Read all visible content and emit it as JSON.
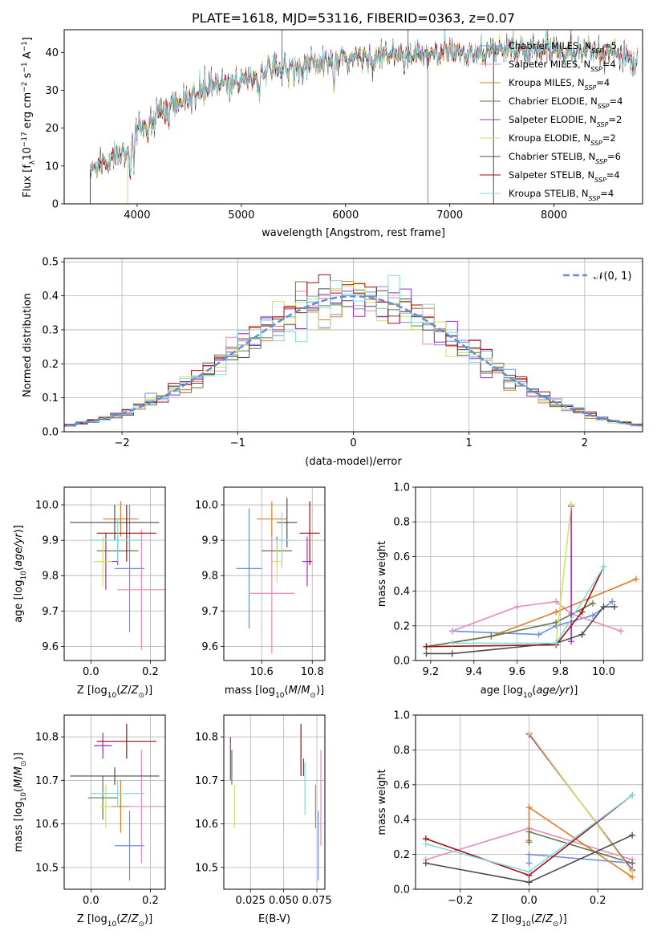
{
  "colors": [
    "#6b8fdf",
    "#e589bf",
    "#e07a26",
    "#5e7a4a",
    "#9b2fb8",
    "#d6e05a",
    "#4a4a4a",
    "#a50e0e",
    "#80dce0"
  ],
  "legend": [
    {
      "label": "Chabrier MILES, N",
      "sub": "SSP",
      "tail": "=5"
    },
    {
      "label": "Salpeter MILES, N",
      "sub": "SSP",
      "tail": "=4"
    },
    {
      "label": "Kroupa MILES, N",
      "sub": "SSP",
      "tail": "=4"
    },
    {
      "label": "Chabrier ELODIE, N",
      "sub": "SSP",
      "tail": "=4"
    },
    {
      "label": "Salpeter ELODIE, N",
      "sub": "SSP",
      "tail": "=2"
    },
    {
      "label": "Kroupa ELODIE, N",
      "sub": "SSP",
      "tail": "=2"
    },
    {
      "label": "Chabrier STELIB, N",
      "sub": "SSP",
      "tail": "=6"
    },
    {
      "label": "Salpeter STELIB, N",
      "sub": "SSP",
      "tail": "=4"
    },
    {
      "label": "Kroupa STELIB, N",
      "sub": "SSP",
      "tail": "=4"
    }
  ],
  "chart_data": [
    {
      "id": "spectrum",
      "type": "line",
      "title": "PLATE=1618, MJD=53116, FIBERID=0363, z=0.07",
      "xlabel": "wavelength [Angstrom, rest frame]",
      "ylabel_parts": [
        "Flux [f",
        "λ",
        "10",
        "−17",
        " erg cm",
        "−2",
        " s",
        "−1",
        " A",
        "−1",
        "]"
      ],
      "xlim": [
        3300,
        8850
      ],
      "ylim": [
        0,
        46
      ],
      "xticks": [
        4000,
        5000,
        6000,
        7000,
        8000
      ],
      "yticks": [
        0,
        10,
        20,
        30,
        40
      ],
      "continuum": {
        "x": [
          3550,
          3700,
          3900,
          4000,
          4100,
          4300,
          4500,
          4700,
          5000,
          5300,
          5600,
          6000,
          6400,
          6800,
          7200,
          7500,
          8000,
          8500,
          8800
        ],
        "y": [
          9,
          11,
          15,
          19,
          21,
          25,
          28,
          31,
          33,
          35,
          36.5,
          38,
          39,
          39.5,
          40,
          40.5,
          41,
          40,
          38
        ]
      }
    },
    {
      "id": "residuals",
      "type": "line",
      "xlabel": "(data-model)/error",
      "ylabel": "Normed distribution",
      "xlim": [
        -2.5,
        2.5
      ],
      "ylim": [
        0,
        0.51
      ],
      "xticks": [
        -2,
        -1,
        0,
        1,
        2
      ],
      "xtick_labels": [
        "−2",
        "−1",
        "0",
        "1",
        "2"
      ],
      "yticks": [
        0.0,
        0.1,
        0.2,
        0.3,
        0.4,
        0.5
      ],
      "ytick_labels": [
        "0.0",
        "0.1",
        "0.2",
        "0.3",
        "0.4",
        "0.5"
      ],
      "reference_label": "𝒩(0, 1)",
      "bin_width": 0.1
    },
    {
      "id": "age_vs_Z",
      "type": "scatter",
      "xlabel": "Z [log10(Z/Z⊙)]",
      "ylabel": "age [log10(age/yr)]",
      "xlim": [
        -0.09,
        0.25
      ],
      "ylim": [
        9.56,
        10.05
      ],
      "xticks": [
        0.0,
        0.2
      ],
      "xtick_labels": [
        "0.0",
        "0.2"
      ],
      "yticks": [
        9.6,
        9.7,
        9.8,
        9.9,
        10.0
      ],
      "ytick_labels": [
        "9.6",
        "9.7",
        "9.8",
        "9.9",
        "10.0"
      ],
      "points": [
        {
          "x": 0.13,
          "y": 9.82,
          "xe": 0.05,
          "ye": 0.18
        },
        {
          "x": 0.17,
          "y": 9.76,
          "xe": 0.08,
          "ye": 0.17
        },
        {
          "x": 0.1,
          "y": 9.96,
          "xe": 0.06,
          "ye": 0.05
        },
        {
          "x": 0.09,
          "y": 9.87,
          "xe": 0.07,
          "ye": 0.04
        },
        {
          "x": 0.05,
          "y": 9.84,
          "xe": 0.04,
          "ye": 0.08
        },
        {
          "x": 0.04,
          "y": 9.84,
          "xe": 0.03,
          "ye": 0.07
        },
        {
          "x": 0.08,
          "y": 9.95,
          "xe": 0.15,
          "ye": 0.05
        },
        {
          "x": 0.12,
          "y": 9.92,
          "xe": 0.1,
          "ye": 0.08
        },
        {
          "x": 0.09,
          "y": 9.9,
          "xe": 0.09,
          "ye": 0.06
        }
      ]
    },
    {
      "id": "age_vs_mass",
      "type": "scatter",
      "xlabel": "mass [log10(M/M⊙)]",
      "xlim": [
        10.45,
        10.85
      ],
      "ylim": [
        9.56,
        10.05
      ],
      "xticks": [
        10.6,
        10.8
      ],
      "xtick_labels": [
        "10.6",
        "10.8"
      ],
      "yticks": [
        9.6,
        9.7,
        9.8,
        9.9,
        10.0
      ],
      "ytick_labels": [
        "9.6",
        "9.7",
        "9.8",
        "9.9",
        "10.0"
      ],
      "points": [
        {
          "x": 10.55,
          "y": 9.82,
          "xe": 0.05,
          "ye": 0.17
        },
        {
          "x": 10.64,
          "y": 9.75,
          "xe": 0.09,
          "ye": 0.17
        },
        {
          "x": 10.64,
          "y": 9.96,
          "xe": 0.06,
          "ye": 0.05
        },
        {
          "x": 10.66,
          "y": 9.87,
          "xe": 0.06,
          "ye": 0.04
        },
        {
          "x": 10.78,
          "y": 9.84,
          "xe": 0.02,
          "ye": 0.07
        },
        {
          "x": 10.66,
          "y": 9.84,
          "xe": 0.02,
          "ye": 0.06
        },
        {
          "x": 10.7,
          "y": 9.95,
          "xe": 0.04,
          "ye": 0.07
        },
        {
          "x": 10.79,
          "y": 9.92,
          "xe": 0.04,
          "ye": 0.09
        },
        {
          "x": 10.68,
          "y": 9.9,
          "xe": 0.03,
          "ye": 0.08
        }
      ]
    },
    {
      "id": "weight_vs_age",
      "type": "line",
      "xlabel": "age [log10(age/yr)]",
      "ylabel": "mass weight",
      "xlim": [
        9.13,
        10.18
      ],
      "ylim": [
        0,
        1
      ],
      "xticks": [
        9.2,
        9.4,
        9.6,
        9.8,
        10.0
      ],
      "xtick_labels": [
        "9.2",
        "9.4",
        "9.6",
        "9.8",
        "10.0"
      ],
      "yticks": [
        0,
        0.2,
        0.4,
        0.6,
        0.8,
        1.0
      ],
      "ytick_labels": [
        "0.0",
        "0.2",
        "0.4",
        "0.6",
        "0.8",
        "1.0"
      ],
      "series": [
        {
          "x": [
            9.3,
            9.7,
            9.78,
            9.95,
            10.04
          ],
          "y": [
            0.17,
            0.15,
            0.2,
            0.26,
            0.34
          ]
        },
        {
          "x": [
            9.3,
            9.6,
            9.78,
            9.85,
            10.08
          ],
          "y": [
            0.17,
            0.31,
            0.34,
            0.27,
            0.17
          ]
        },
        {
          "x": [
            9.18,
            9.48,
            9.78,
            10.15
          ],
          "y": [
            0.08,
            0.14,
            0.28,
            0.47
          ]
        },
        {
          "x": [
            9.18,
            9.48,
            9.78,
            9.95
          ],
          "y": [
            0.08,
            0.14,
            0.22,
            0.33
          ]
        },
        {
          "x": [
            9.85,
            9.85
          ],
          "y": [
            0.11,
            0.89
          ]
        },
        {
          "x": [
            9.78,
            9.85
          ],
          "y": [
            0.1,
            0.9
          ]
        },
        {
          "x": [
            9.18,
            9.3,
            9.78,
            9.9,
            10.0,
            10.05
          ],
          "y": [
            0.04,
            0.04,
            0.1,
            0.15,
            0.31,
            0.31
          ]
        },
        {
          "x": [
            9.18,
            9.78,
            9.9,
            10.0
          ],
          "y": [
            0.08,
            0.09,
            0.28,
            0.54
          ]
        },
        {
          "x": [
            9.3,
            9.78,
            10.0
          ],
          "y": [
            0.1,
            0.1,
            0.54
          ]
        }
      ]
    },
    {
      "id": "mass_vs_Z",
      "type": "scatter",
      "xlabel": "Z [log10(Z/Z⊙)]",
      "ylabel": "mass [log10(M/M⊙)]",
      "xlim": [
        -0.09,
        0.25
      ],
      "ylim": [
        10.45,
        10.85
      ],
      "xticks": [
        0.0,
        0.2
      ],
      "xtick_labels": [
        "0.0",
        "0.2"
      ],
      "yticks": [
        10.5,
        10.6,
        10.7,
        10.8
      ],
      "ytick_labels": [
        "10.5",
        "10.6",
        "10.7",
        "10.8"
      ],
      "points": [
        {
          "x": 0.13,
          "y": 10.55,
          "xe": 0.05,
          "ye": 0.08
        },
        {
          "x": 0.17,
          "y": 10.64,
          "xe": 0.08,
          "ye": 0.13
        },
        {
          "x": 0.1,
          "y": 10.64,
          "xe": 0.03,
          "ye": 0.06
        },
        {
          "x": 0.04,
          "y": 10.66,
          "xe": 0.05,
          "ye": 0.05
        },
        {
          "x": 0.04,
          "y": 10.78,
          "xe": 0.03,
          "ye": 0.03
        },
        {
          "x": 0.05,
          "y": 10.64,
          "xe": 0.02,
          "ye": 0.05
        },
        {
          "x": 0.08,
          "y": 10.71,
          "xe": 0.15,
          "ye": 0.02
        },
        {
          "x": 0.12,
          "y": 10.79,
          "xe": 0.1,
          "ye": 0.04
        },
        {
          "x": 0.09,
          "y": 10.67,
          "xe": 0.09,
          "ye": 0.03
        }
      ]
    },
    {
      "id": "mass_vs_ebv",
      "type": "scatter",
      "xlabel": "E(B-V)",
      "xlim": [
        0.005,
        0.081
      ],
      "ylim": [
        10.45,
        10.85
      ],
      "xticks": [
        0.025,
        0.05,
        0.075
      ],
      "xtick_labels": [
        "0.025",
        "0.050",
        "0.075"
      ],
      "yticks": [
        10.5,
        10.6,
        10.7,
        10.8
      ],
      "ytick_labels": [
        "10.5",
        "10.6",
        "10.7",
        "10.8"
      ],
      "points": [
        {
          "x": 0.076,
          "y": 10.55,
          "xe": 0,
          "ye": 0.08
        },
        {
          "x": 0.078,
          "y": 10.66,
          "xe": 0,
          "ye": 0.11
        },
        {
          "x": 0.074,
          "y": 10.64,
          "xe": 0,
          "ye": 0.05
        },
        {
          "x": 0.011,
          "y": 10.73,
          "xe": 0,
          "ye": 0.04
        },
        {
          "x": 0.01,
          "y": 10.75,
          "xe": 0,
          "ye": 0.05
        },
        {
          "x": 0.013,
          "y": 10.64,
          "xe": 0,
          "ye": 0.05
        },
        {
          "x": 0.065,
          "y": 10.73,
          "xe": 0,
          "ye": 0.02
        },
        {
          "x": 0.063,
          "y": 10.77,
          "xe": 0,
          "ye": 0.06
        },
        {
          "x": 0.066,
          "y": 10.68,
          "xe": 0,
          "ye": 0.06
        }
      ]
    },
    {
      "id": "weight_vs_Z",
      "type": "line",
      "xlabel": "Z [log10(Z/Z⊙)]",
      "ylabel": "mass weight",
      "xlim": [
        -0.33,
        0.33
      ],
      "ylim": [
        0,
        1
      ],
      "xticks": [
        -0.2,
        0.0,
        0.2
      ],
      "xtick_labels": [
        "−0.2",
        "0.0",
        "0.2"
      ],
      "yticks": [
        0,
        0.2,
        0.4,
        0.6,
        0.8,
        1.0
      ],
      "ytick_labels": [
        "0.0",
        "0.2",
        "0.4",
        "0.6",
        "0.8",
        "1.0"
      ],
      "series": [
        {
          "x": [
            0.0,
            0.0,
            0.3
          ],
          "y": [
            0.15,
            0.2,
            0.15
          ]
        },
        {
          "x": [
            -0.3,
            0.0,
            0.3
          ],
          "y": [
            0.17,
            0.35,
            0.17
          ]
        },
        {
          "x": [
            0.0,
            0.0,
            0.3
          ],
          "y": [
            0.28,
            0.47,
            0.07
          ]
        },
        {
          "x": [
            0.0,
            0.0,
            0.3
          ],
          "y": [
            0.27,
            0.33,
            0.15
          ]
        },
        {
          "x": [
            0.0,
            0.3
          ],
          "y": [
            0.89,
            0.11
          ]
        },
        {
          "x": [
            0.0,
            0.3
          ],
          "y": [
            0.9,
            0.1
          ]
        },
        {
          "x": [
            -0.3,
            0.0,
            0.3
          ],
          "y": [
            0.15,
            0.04,
            0.31
          ]
        },
        {
          "x": [
            -0.3,
            0.0,
            0.3
          ],
          "y": [
            0.29,
            0.08,
            0.54
          ]
        },
        {
          "x": [
            -0.3,
            0.0,
            0.3
          ],
          "y": [
            0.26,
            0.1,
            0.54
          ]
        }
      ]
    }
  ]
}
